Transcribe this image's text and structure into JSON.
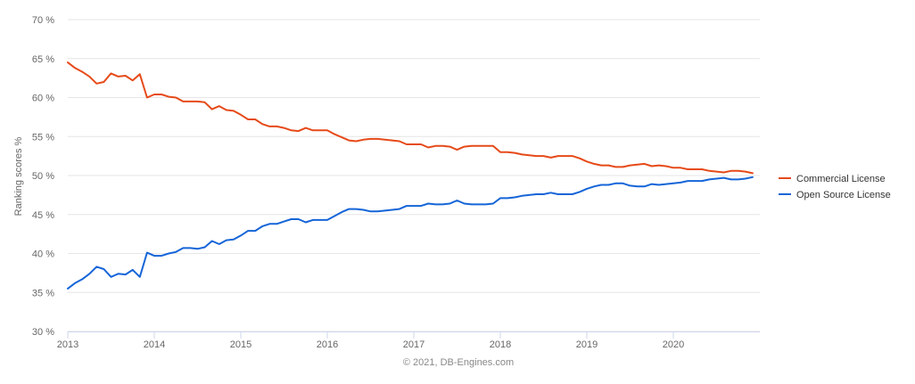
{
  "chart_data": {
    "type": "line",
    "ylabel": "Ranking scores %",
    "ylim": [
      30,
      70
    ],
    "y_ticks": [
      30,
      35,
      40,
      45,
      50,
      55,
      60,
      65,
      70
    ],
    "y_tick_format": "{v} %",
    "xlim": [
      2013,
      2021
    ],
    "x_ticks": [
      "2013",
      "2014",
      "2015",
      "2016",
      "2017",
      "2018",
      "2019",
      "2020"
    ],
    "grid": true,
    "legend_position": "right",
    "credit": "© 2021, DB-Engines.com",
    "x": [
      2013.0,
      2013.083,
      2013.167,
      2013.25,
      2013.333,
      2013.417,
      2013.5,
      2013.583,
      2013.667,
      2013.75,
      2013.833,
      2013.917,
      2014.0,
      2014.083,
      2014.167,
      2014.25,
      2014.333,
      2014.417,
      2014.5,
      2014.583,
      2014.667,
      2014.75,
      2014.833,
      2014.917,
      2015.0,
      2015.083,
      2015.167,
      2015.25,
      2015.333,
      2015.417,
      2015.5,
      2015.583,
      2015.667,
      2015.75,
      2015.833,
      2015.917,
      2016.0,
      2016.083,
      2016.167,
      2016.25,
      2016.333,
      2016.417,
      2016.5,
      2016.583,
      2016.667,
      2016.75,
      2016.833,
      2016.917,
      2017.0,
      2017.083,
      2017.167,
      2017.25,
      2017.333,
      2017.417,
      2017.5,
      2017.583,
      2017.667,
      2017.75,
      2017.833,
      2017.917,
      2018.0,
      2018.083,
      2018.167,
      2018.25,
      2018.333,
      2018.417,
      2018.5,
      2018.583,
      2018.667,
      2018.75,
      2018.833,
      2018.917,
      2019.0,
      2019.083,
      2019.167,
      2019.25,
      2019.333,
      2019.417,
      2019.5,
      2019.583,
      2019.667,
      2019.75,
      2019.833,
      2019.917,
      2020.0,
      2020.083,
      2020.167,
      2020.25,
      2020.333,
      2020.417,
      2020.5,
      2020.583,
      2020.667,
      2020.75,
      2020.833,
      2020.917
    ],
    "series": [
      {
        "name": "Commercial License",
        "color": "#e64a19",
        "values": [
          64.5,
          63.8,
          63.3,
          62.7,
          61.8,
          62.0,
          63.1,
          62.7,
          62.8,
          62.2,
          63.0,
          60.0,
          60.4,
          60.4,
          60.1,
          60.0,
          59.5,
          59.5,
          59.5,
          59.4,
          58.5,
          58.9,
          58.4,
          58.3,
          57.8,
          57.2,
          57.2,
          56.6,
          56.3,
          56.3,
          56.1,
          55.8,
          55.7,
          56.1,
          55.8,
          55.8,
          55.8,
          55.3,
          54.9,
          54.5,
          54.4,
          54.6,
          54.7,
          54.7,
          54.6,
          54.5,
          54.4,
          54.0,
          54.0,
          54.0,
          53.6,
          53.8,
          53.8,
          53.7,
          53.3,
          53.7,
          53.8,
          53.8,
          53.8,
          53.8,
          53.0,
          53.0,
          52.9,
          52.7,
          52.6,
          52.5,
          52.5,
          52.3,
          52.5,
          52.5,
          52.5,
          52.2,
          51.8,
          51.5,
          51.3,
          51.3,
          51.1,
          51.1,
          51.3,
          51.4,
          51.5,
          51.2,
          51.3,
          51.2,
          51.0,
          51.0,
          50.8,
          50.8,
          50.8,
          50.6,
          50.5,
          50.4,
          50.6,
          50.6,
          50.5,
          50.3
        ]
      },
      {
        "name": "Open Source License",
        "color": "#1565d8",
        "values": [
          35.5,
          36.2,
          36.7,
          37.4,
          38.3,
          38.0,
          37.0,
          37.4,
          37.3,
          37.9,
          37.0,
          40.1,
          39.7,
          39.7,
          40.0,
          40.2,
          40.7,
          40.7,
          40.6,
          40.8,
          41.6,
          41.2,
          41.7,
          41.8,
          42.3,
          42.9,
          42.9,
          43.5,
          43.8,
          43.8,
          44.1,
          44.4,
          44.4,
          44.0,
          44.3,
          44.3,
          44.3,
          44.8,
          45.3,
          45.7,
          45.7,
          45.6,
          45.4,
          45.4,
          45.5,
          45.6,
          45.7,
          46.1,
          46.1,
          46.1,
          46.4,
          46.3,
          46.3,
          46.4,
          46.8,
          46.4,
          46.3,
          46.3,
          46.3,
          46.4,
          47.1,
          47.1,
          47.2,
          47.4,
          47.5,
          47.6,
          47.6,
          47.8,
          47.6,
          47.6,
          47.6,
          47.9,
          48.3,
          48.6,
          48.8,
          48.8,
          49.0,
          49.0,
          48.7,
          48.6,
          48.6,
          48.9,
          48.8,
          48.9,
          49.0,
          49.1,
          49.3,
          49.3,
          49.3,
          49.5,
          49.6,
          49.7,
          49.5,
          49.5,
          49.6,
          49.8
        ]
      }
    ]
  }
}
